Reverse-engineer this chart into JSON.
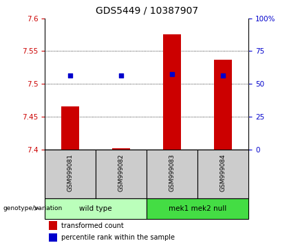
{
  "title": "GDS5449 / 10387907",
  "samples": [
    "GSM999081",
    "GSM999082",
    "GSM999083",
    "GSM999084"
  ],
  "bar_baseline": 7.4,
  "bar_tops": [
    7.466,
    7.402,
    7.575,
    7.537
  ],
  "blue_values": [
    7.513,
    7.513,
    7.515,
    7.513
  ],
  "ylim_left": [
    7.4,
    7.6
  ],
  "ylim_right": [
    0,
    100
  ],
  "yticks_left": [
    7.4,
    7.45,
    7.5,
    7.55,
    7.6
  ],
  "yticks_right": [
    0,
    25,
    50,
    75,
    100
  ],
  "ytick_labels_left": [
    "7.4",
    "7.45",
    "7.5",
    "7.55",
    "7.6"
  ],
  "ytick_labels_right": [
    "0",
    "25",
    "50",
    "75",
    "100%"
  ],
  "bar_color": "#cc0000",
  "blue_color": "#0000cc",
  "group1_label": "wild type",
  "group2_label": "mek1 mek2 null",
  "group1_color": "#bbffbb",
  "group2_color": "#44dd44",
  "group_label_prefix": "genotype/variation",
  "legend_red": "transformed count",
  "legend_blue": "percentile rank within the sample",
  "bar_width": 0.35,
  "sample_area_color": "#cccccc",
  "title_fontsize": 10,
  "axis_fontsize": 7.5,
  "tick_fontsize": 7.5
}
